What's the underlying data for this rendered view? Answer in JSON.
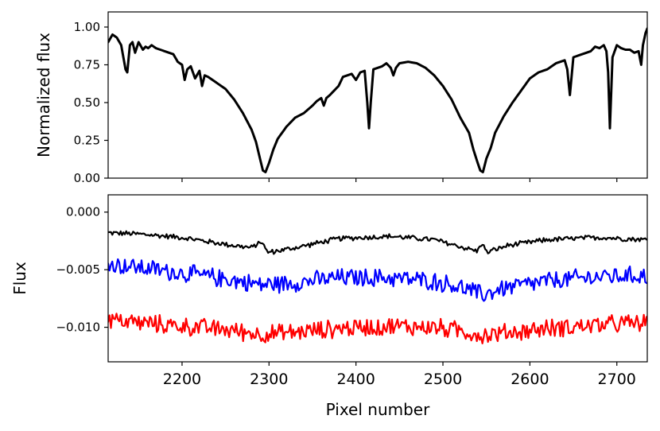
{
  "chart_data": [
    {
      "type": "line",
      "title": "",
      "xlabel": "",
      "ylabel": "Normalized flux",
      "xlim": [
        2115,
        2735
      ],
      "ylim": [
        0.0,
        1.1
      ],
      "yticks": [
        0.0,
        0.25,
        0.5,
        0.75,
        1.0
      ],
      "ytick_labels": [
        "0.00",
        "0.25",
        "0.50",
        "0.75",
        "1.00"
      ],
      "xticks": [
        2200,
        2300,
        2400,
        2500,
        2600,
        2700
      ],
      "series": [
        {
          "color": "#000000",
          "x": [
            2115,
            2120,
            2125,
            2130,
            2135,
            2137,
            2140,
            2143,
            2146,
            2150,
            2155,
            2158,
            2161,
            2165,
            2170,
            2175,
            2180,
            2185,
            2190,
            2195,
            2200,
            2203,
            2206,
            2210,
            2215,
            2220,
            2223,
            2226,
            2230,
            2240,
            2250,
            2260,
            2270,
            2280,
            2285,
            2290,
            2293,
            2296,
            2300,
            2305,
            2310,
            2320,
            2330,
            2340,
            2350,
            2355,
            2360,
            2363,
            2366,
            2370,
            2380,
            2385,
            2390,
            2395,
            2400,
            2405,
            2410,
            2413,
            2415,
            2417,
            2420,
            2430,
            2435,
            2440,
            2443,
            2446,
            2450,
            2460,
            2470,
            2480,
            2490,
            2500,
            2510,
            2520,
            2530,
            2535,
            2540,
            2543,
            2546,
            2550,
            2555,
            2560,
            2570,
            2580,
            2590,
            2600,
            2610,
            2620,
            2630,
            2640,
            2643,
            2646,
            2650,
            2660,
            2670,
            2675,
            2680,
            2685,
            2688,
            2690,
            2692,
            2695,
            2700,
            2705,
            2710,
            2715,
            2720,
            2725,
            2728,
            2730,
            2733,
            2735
          ],
          "y": [
            0.9,
            0.95,
            0.93,
            0.88,
            0.72,
            0.7,
            0.88,
            0.9,
            0.83,
            0.9,
            0.85,
            0.87,
            0.86,
            0.88,
            0.86,
            0.85,
            0.84,
            0.83,
            0.82,
            0.77,
            0.75,
            0.65,
            0.72,
            0.74,
            0.66,
            0.71,
            0.61,
            0.68,
            0.67,
            0.63,
            0.59,
            0.52,
            0.43,
            0.32,
            0.24,
            0.12,
            0.05,
            0.04,
            0.1,
            0.19,
            0.26,
            0.34,
            0.4,
            0.43,
            0.48,
            0.51,
            0.53,
            0.48,
            0.53,
            0.55,
            0.61,
            0.67,
            0.68,
            0.69,
            0.65,
            0.7,
            0.71,
            0.5,
            0.33,
            0.5,
            0.72,
            0.74,
            0.76,
            0.73,
            0.68,
            0.73,
            0.76,
            0.77,
            0.76,
            0.73,
            0.68,
            0.61,
            0.52,
            0.4,
            0.3,
            0.19,
            0.1,
            0.05,
            0.04,
            0.13,
            0.2,
            0.3,
            0.41,
            0.5,
            0.58,
            0.66,
            0.7,
            0.72,
            0.76,
            0.78,
            0.72,
            0.55,
            0.8,
            0.82,
            0.84,
            0.87,
            0.86,
            0.88,
            0.84,
            0.7,
            0.33,
            0.8,
            0.88,
            0.86,
            0.85,
            0.85,
            0.83,
            0.84,
            0.75,
            0.88,
            0.96,
            0.99
          ]
        }
      ]
    },
    {
      "type": "line",
      "title": "",
      "xlabel": "Pixel number",
      "ylabel": "Flux",
      "xlim": [
        2115,
        2735
      ],
      "ylim": [
        -0.013,
        0.0015
      ],
      "yticks": [
        0.0,
        -0.005,
        -0.01
      ],
      "ytick_labels": [
        "0.000",
        "−0.005",
        "−0.010"
      ],
      "xticks": [
        2200,
        2300,
        2400,
        2500,
        2600,
        2700
      ],
      "xtick_labels": [
        "2200",
        "2300",
        "2400",
        "2500",
        "2600",
        "2700"
      ],
      "series": [
        {
          "color": "#000000",
          "x": [
            2115,
            2150,
            2200,
            2250,
            2280,
            2292,
            2296,
            2300,
            2330,
            2380,
            2440,
            2490,
            2520,
            2540,
            2545,
            2550,
            2575,
            2620,
            2680,
            2735
          ],
          "y": [
            -0.0018,
            -0.0019,
            -0.0022,
            -0.0028,
            -0.0031,
            -0.0025,
            -0.0033,
            -0.0035,
            -0.0031,
            -0.0023,
            -0.0021,
            -0.0024,
            -0.003,
            -0.0034,
            -0.0026,
            -0.0035,
            -0.0029,
            -0.0024,
            -0.0022,
            -0.0024
          ],
          "noise": 0.00025
        },
        {
          "color": "#0000ff",
          "x": [
            2115,
            2150,
            2200,
            2250,
            2290,
            2320,
            2380,
            2440,
            2490,
            2520,
            2545,
            2570,
            2620,
            2680,
            2735
          ],
          "y": [
            -0.0045,
            -0.0048,
            -0.0053,
            -0.0058,
            -0.0063,
            -0.0062,
            -0.0057,
            -0.0057,
            -0.006,
            -0.0065,
            -0.0072,
            -0.0066,
            -0.006,
            -0.0056,
            -0.0055
          ],
          "noise": 0.0009
        },
        {
          "color": "#ff0000",
          "x": [
            2115,
            2150,
            2200,
            2250,
            2290,
            2320,
            2380,
            2440,
            2490,
            2520,
            2545,
            2570,
            2620,
            2680,
            2735
          ],
          "y": [
            -0.0093,
            -0.0096,
            -0.0099,
            -0.0102,
            -0.0106,
            -0.0105,
            -0.0101,
            -0.0099,
            -0.01,
            -0.0103,
            -0.0107,
            -0.0105,
            -0.0101,
            -0.0098,
            -0.0096
          ],
          "noise": 0.0009
        }
      ]
    }
  ]
}
